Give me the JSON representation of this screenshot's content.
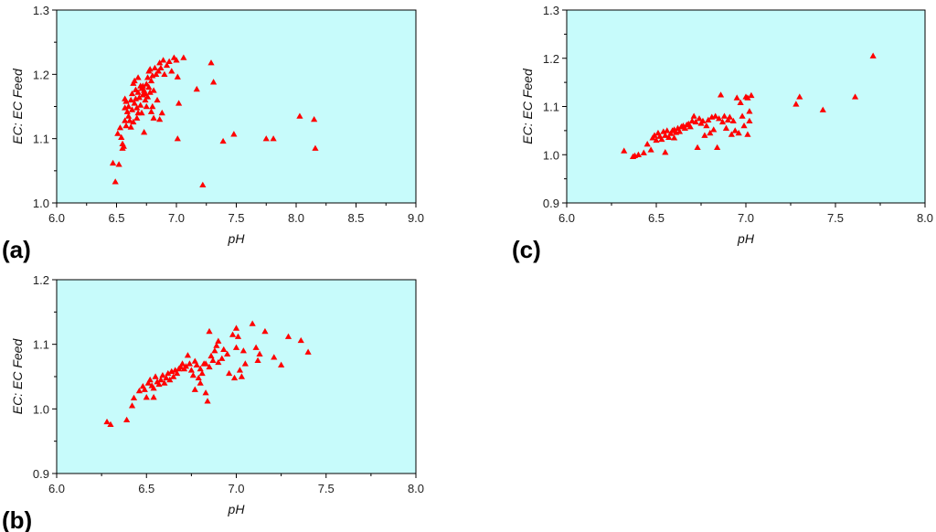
{
  "colors": {
    "plot_bg": "#c7fbfb",
    "marker": "#ff0000",
    "axis": "#000000"
  },
  "chart_data": [
    {
      "id": "a",
      "type": "scatter",
      "panel_label": "(a)",
      "title": "",
      "xlabel": "pH",
      "ylabel": "EC: EC Feed",
      "xlim": [
        6.0,
        9.0
      ],
      "ylim": [
        1.0,
        1.3
      ],
      "xticks": [
        6.0,
        6.5,
        7.0,
        7.5,
        8.0,
        8.5,
        9.0
      ],
      "yticks": [
        1.0,
        1.1,
        1.2,
        1.3
      ],
      "xtick_labels": [
        "6.0",
        "6.5",
        "7.0",
        "7.5",
        "8.0",
        "8.5",
        "9.0"
      ],
      "ytick_labels": [
        "1.0",
        "1.1",
        "1.2",
        "1.3"
      ],
      "grid": false,
      "points": [
        [
          6.47,
          1.062
        ],
        [
          6.49,
          1.033
        ],
        [
          6.52,
          1.06
        ],
        [
          6.51,
          1.108
        ],
        [
          6.53,
          1.117
        ],
        [
          6.55,
          1.092
        ],
        [
          6.55,
          1.085
        ],
        [
          6.56,
          1.088
        ],
        [
          6.54,
          1.102
        ],
        [
          6.57,
          1.128
        ],
        [
          6.57,
          1.148
        ],
        [
          6.58,
          1.158
        ],
        [
          6.57,
          1.162
        ],
        [
          6.59,
          1.142
        ],
        [
          6.6,
          1.15
        ],
        [
          6.6,
          1.135
        ],
        [
          6.61,
          1.128
        ],
        [
          6.62,
          1.16
        ],
        [
          6.63,
          1.17
        ],
        [
          6.63,
          1.145
        ],
        [
          6.64,
          1.186
        ],
        [
          6.64,
          1.126
        ],
        [
          6.65,
          1.19
        ],
        [
          6.65,
          1.155
        ],
        [
          6.66,
          1.176
        ],
        [
          6.66,
          1.162
        ],
        [
          6.67,
          1.148
        ],
        [
          6.67,
          1.132
        ],
        [
          6.68,
          1.195
        ],
        [
          6.68,
          1.172
        ],
        [
          6.69,
          1.164
        ],
        [
          6.7,
          1.182
        ],
        [
          6.7,
          1.152
        ],
        [
          6.71,
          1.178
        ],
        [
          6.71,
          1.14
        ],
        [
          6.72,
          1.168
        ],
        [
          6.73,
          1.175
        ],
        [
          6.73,
          1.11
        ],
        [
          6.74,
          1.17
        ],
        [
          6.74,
          1.16
        ],
        [
          6.75,
          1.185
        ],
        [
          6.75,
          1.15
        ],
        [
          6.76,
          1.195
        ],
        [
          6.76,
          1.165
        ],
        [
          6.77,
          1.205
        ],
        [
          6.77,
          1.18
        ],
        [
          6.78,
          1.208
        ],
        [
          6.78,
          1.172
        ],
        [
          6.79,
          1.19
        ],
        [
          6.79,
          1.142
        ],
        [
          6.8,
          1.198
        ],
        [
          6.8,
          1.15
        ],
        [
          6.81,
          1.175
        ],
        [
          6.81,
          1.132
        ],
        [
          6.82,
          1.21
        ],
        [
          6.83,
          1.2
        ],
        [
          6.84,
          1.16
        ],
        [
          6.85,
          1.205
        ],
        [
          6.86,
          1.218
        ],
        [
          6.87,
          1.21
        ],
        [
          6.88,
          1.14
        ],
        [
          6.89,
          1.222
        ],
        [
          6.9,
          1.2
        ],
        [
          6.92,
          1.214
        ],
        [
          6.94,
          1.22
        ],
        [
          6.96,
          1.205
        ],
        [
          6.98,
          1.226
        ],
        [
          7.0,
          1.222
        ],
        [
          7.01,
          1.196
        ],
        [
          7.02,
          1.155
        ],
        [
          7.01,
          1.1
        ],
        [
          7.06,
          1.226
        ],
        [
          7.17,
          1.177
        ],
        [
          7.22,
          1.028
        ],
        [
          7.29,
          1.218
        ],
        [
          7.31,
          1.188
        ],
        [
          7.39,
          1.096
        ],
        [
          7.48,
          1.107
        ],
        [
          7.75,
          1.1
        ],
        [
          7.81,
          1.1
        ],
        [
          8.03,
          1.135
        ],
        [
          8.15,
          1.13
        ],
        [
          8.16,
          1.085
        ],
        [
          6.58,
          1.12
        ],
        [
          6.62,
          1.118
        ],
        [
          6.68,
          1.14
        ],
        [
          6.72,
          1.182
        ],
        [
          6.86,
          1.13
        ]
      ]
    },
    {
      "id": "b",
      "type": "scatter",
      "panel_label": "(b)",
      "title": "",
      "xlabel": "pH",
      "ylabel": "EC: EC Feed",
      "xlim": [
        6.0,
        8.0
      ],
      "ylim": [
        0.9,
        1.2
      ],
      "xticks": [
        6.0,
        6.5,
        7.0,
        7.5,
        8.0
      ],
      "yticks": [
        0.9,
        1.0,
        1.1,
        1.2
      ],
      "xtick_labels": [
        "6.0",
        "6.5",
        "7.0",
        "7.5",
        "8.0"
      ],
      "ytick_labels": [
        "0.9",
        "1.0",
        "1.1",
        "1.2"
      ],
      "grid": false,
      "points": [
        [
          6.28,
          0.98
        ],
        [
          6.3,
          0.976
        ],
        [
          6.39,
          0.983
        ],
        [
          6.42,
          1.005
        ],
        [
          6.43,
          1.017
        ],
        [
          6.46,
          1.028
        ],
        [
          6.48,
          1.035
        ],
        [
          6.49,
          1.03
        ],
        [
          6.5,
          1.018
        ],
        [
          6.51,
          1.04
        ],
        [
          6.52,
          1.045
        ],
        [
          6.53,
          1.036
        ],
        [
          6.54,
          1.032
        ],
        [
          6.54,
          1.018
        ],
        [
          6.55,
          1.05
        ],
        [
          6.56,
          1.042
        ],
        [
          6.57,
          1.038
        ],
        [
          6.58,
          1.045
        ],
        [
          6.59,
          1.052
        ],
        [
          6.6,
          1.04
        ],
        [
          6.61,
          1.048
        ],
        [
          6.62,
          1.055
        ],
        [
          6.63,
          1.045
        ],
        [
          6.64,
          1.058
        ],
        [
          6.65,
          1.05
        ],
        [
          6.66,
          1.06
        ],
        [
          6.67,
          1.055
        ],
        [
          6.68,
          1.062
        ],
        [
          6.69,
          1.065
        ],
        [
          6.7,
          1.07
        ],
        [
          6.71,
          1.062
        ],
        [
          6.72,
          1.066
        ],
        [
          6.73,
          1.083
        ],
        [
          6.74,
          1.07
        ],
        [
          6.75,
          1.06
        ],
        [
          6.76,
          1.052
        ],
        [
          6.77,
          1.074
        ],
        [
          6.77,
          1.03
        ],
        [
          6.78,
          1.068
        ],
        [
          6.79,
          1.048
        ],
        [
          6.8,
          1.062
        ],
        [
          6.8,
          1.04
        ],
        [
          6.81,
          1.055
        ],
        [
          6.82,
          1.07
        ],
        [
          6.83,
          1.025
        ],
        [
          6.83,
          1.07
        ],
        [
          6.84,
          1.012
        ],
        [
          6.85,
          1.12
        ],
        [
          6.85,
          1.065
        ],
        [
          6.86,
          1.082
        ],
        [
          6.87,
          1.075
        ],
        [
          6.88,
          1.09
        ],
        [
          6.89,
          1.098
        ],
        [
          6.9,
          1.072
        ],
        [
          6.92,
          1.078
        ],
        [
          6.95,
          1.085
        ],
        [
          6.96,
          1.055
        ],
        [
          6.98,
          1.115
        ],
        [
          6.99,
          1.048
        ],
        [
          7.0,
          1.125
        ],
        [
          7.01,
          1.112
        ],
        [
          7.02,
          1.06
        ],
        [
          7.03,
          1.05
        ],
        [
          7.04,
          1.09
        ],
        [
          7.05,
          1.07
        ],
        [
          7.09,
          1.132
        ],
        [
          7.11,
          1.095
        ],
        [
          7.12,
          1.075
        ],
        [
          7.13,
          1.085
        ],
        [
          7.16,
          1.12
        ],
        [
          7.21,
          1.08
        ],
        [
          7.25,
          1.068
        ],
        [
          7.29,
          1.112
        ],
        [
          7.36,
          1.106
        ],
        [
          7.4,
          1.088
        ],
        [
          6.9,
          1.105
        ],
        [
          6.93,
          1.092
        ],
        [
          7.0,
          1.095
        ]
      ]
    },
    {
      "id": "c",
      "type": "scatter",
      "panel_label": "(c)",
      "title": "",
      "xlabel": "pH",
      "ylabel": "EC: EC Feed",
      "xlim": [
        6.0,
        8.0
      ],
      "ylim": [
        0.9,
        1.3
      ],
      "xticks": [
        6.0,
        6.5,
        7.0,
        7.5,
        8.0
      ],
      "yticks": [
        0.9,
        1.0,
        1.1,
        1.2,
        1.3
      ],
      "xtick_labels": [
        "6.0",
        "6.5",
        "7.0",
        "7.5",
        "8.0"
      ],
      "ytick_labels": [
        "0.9",
        "1.0",
        "1.1",
        "1.2",
        "1.3"
      ],
      "grid": false,
      "points": [
        [
          6.32,
          1.008
        ],
        [
          6.37,
          0.996
        ],
        [
          6.38,
          0.998
        ],
        [
          6.4,
          1.0
        ],
        [
          6.43,
          1.004
        ],
        [
          6.45,
          1.022
        ],
        [
          6.47,
          1.01
        ],
        [
          6.48,
          1.035
        ],
        [
          6.49,
          1.04
        ],
        [
          6.5,
          1.03
        ],
        [
          6.51,
          1.045
        ],
        [
          6.52,
          1.038
        ],
        [
          6.53,
          1.032
        ],
        [
          6.54,
          1.048
        ],
        [
          6.55,
          1.04
        ],
        [
          6.56,
          1.05
        ],
        [
          6.57,
          1.036
        ],
        [
          6.58,
          1.044
        ],
        [
          6.59,
          1.05
        ],
        [
          6.6,
          1.052
        ],
        [
          6.61,
          1.046
        ],
        [
          6.62,
          1.055
        ],
        [
          6.63,
          1.048
        ],
        [
          6.64,
          1.058
        ],
        [
          6.65,
          1.06
        ],
        [
          6.66,
          1.055
        ],
        [
          6.67,
          1.062
        ],
        [
          6.68,
          1.064
        ],
        [
          6.69,
          1.058
        ],
        [
          6.7,
          1.07
        ],
        [
          6.71,
          1.08
        ],
        [
          6.72,
          1.068
        ],
        [
          6.73,
          1.015
        ],
        [
          6.74,
          1.075
        ],
        [
          6.75,
          1.065
        ],
        [
          6.76,
          1.07
        ],
        [
          6.77,
          1.04
        ],
        [
          6.78,
          1.06
        ],
        [
          6.79,
          1.072
        ],
        [
          6.8,
          1.045
        ],
        [
          6.81,
          1.078
        ],
        [
          6.82,
          1.052
        ],
        [
          6.83,
          1.08
        ],
        [
          6.84,
          1.015
        ],
        [
          6.85,
          1.075
        ],
        [
          6.86,
          1.124
        ],
        [
          6.87,
          1.068
        ],
        [
          6.88,
          1.08
        ],
        [
          6.89,
          1.055
        ],
        [
          6.9,
          1.072
        ],
        [
          6.91,
          1.078
        ],
        [
          6.92,
          1.042
        ],
        [
          6.93,
          1.07
        ],
        [
          6.94,
          1.05
        ],
        [
          6.95,
          1.118
        ],
        [
          6.96,
          1.045
        ],
        [
          6.97,
          1.108
        ],
        [
          6.98,
          1.08
        ],
        [
          6.99,
          1.06
        ],
        [
          7.0,
          1.12
        ],
        [
          7.01,
          1.118
        ],
        [
          7.01,
          1.042
        ],
        [
          7.02,
          1.07
        ],
        [
          7.02,
          1.09
        ],
        [
          7.03,
          1.123
        ],
        [
          7.28,
          1.105
        ],
        [
          7.3,
          1.12
        ],
        [
          7.43,
          1.093
        ],
        [
          7.61,
          1.12
        ],
        [
          7.71,
          1.205
        ],
        [
          6.55,
          1.005
        ],
        [
          6.6,
          1.035
        ]
      ]
    }
  ]
}
